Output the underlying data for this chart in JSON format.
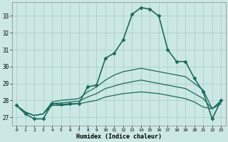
{
  "title": "",
  "xlabel": "Humidex (Indice chaleur)",
  "ylabel": "",
  "background_color": "#cce8e4",
  "grid_color": "#aacfca",
  "line_color": "#1a6b5a",
  "x_ticks": [
    0,
    1,
    2,
    3,
    4,
    5,
    6,
    7,
    8,
    9,
    10,
    11,
    12,
    13,
    14,
    15,
    16,
    17,
    18,
    19,
    20,
    21,
    22,
    23
  ],
  "y_ticks": [
    27,
    28,
    29,
    30,
    31,
    32,
    33
  ],
  "xlim": [
    -0.5,
    23.5
  ],
  "ylim": [
    26.5,
    33.8
  ],
  "series": [
    {
      "x": [
        0,
        1,
        2,
        3,
        4,
        5,
        6,
        7,
        8,
        9,
        10,
        11,
        12,
        13,
        14,
        15,
        16,
        17,
        18,
        19,
        20,
        21,
        22,
        23
      ],
      "y": [
        27.7,
        27.2,
        26.9,
        26.9,
        27.8,
        27.75,
        27.8,
        27.8,
        28.8,
        28.9,
        30.5,
        30.8,
        31.6,
        33.1,
        33.5,
        33.4,
        33.0,
        31.0,
        30.3,
        30.3,
        29.3,
        28.5,
        26.9,
        28.0
      ],
      "marker": "D",
      "markersize": 2.5,
      "linewidth": 1.2
    },
    {
      "x": [
        0,
        1,
        2,
        3,
        4,
        5,
        6,
        7,
        8,
        9,
        10,
        11,
        12,
        13,
        14,
        15,
        16,
        17,
        18,
        19,
        20,
        21,
        22,
        23
      ],
      "y": [
        27.7,
        27.3,
        27.1,
        27.2,
        27.9,
        28.0,
        28.05,
        28.1,
        28.5,
        28.8,
        29.2,
        29.5,
        29.7,
        29.8,
        29.9,
        29.8,
        29.7,
        29.6,
        29.5,
        29.4,
        29.0,
        28.6,
        27.5,
        28.0
      ],
      "marker": null,
      "markersize": 0,
      "linewidth": 0.9
    },
    {
      "x": [
        0,
        1,
        2,
        3,
        4,
        5,
        6,
        7,
        8,
        9,
        10,
        11,
        12,
        13,
        14,
        15,
        16,
        17,
        18,
        19,
        20,
        21,
        22,
        23
      ],
      "y": [
        27.7,
        27.3,
        27.1,
        27.2,
        27.8,
        27.85,
        27.9,
        27.95,
        28.2,
        28.4,
        28.7,
        28.85,
        29.0,
        29.1,
        29.2,
        29.1,
        29.0,
        28.9,
        28.8,
        28.7,
        28.4,
        28.1,
        27.5,
        27.9
      ],
      "marker": null,
      "markersize": 0,
      "linewidth": 0.9
    },
    {
      "x": [
        0,
        1,
        2,
        3,
        4,
        5,
        6,
        7,
        8,
        9,
        10,
        11,
        12,
        13,
        14,
        15,
        16,
        17,
        18,
        19,
        20,
        21,
        22,
        23
      ],
      "y": [
        27.7,
        27.3,
        27.1,
        27.2,
        27.7,
        27.7,
        27.75,
        27.8,
        27.9,
        28.0,
        28.2,
        28.3,
        28.4,
        28.45,
        28.5,
        28.45,
        28.4,
        28.3,
        28.2,
        28.1,
        27.9,
        27.6,
        27.5,
        27.8
      ],
      "marker": null,
      "markersize": 0,
      "linewidth": 0.9
    }
  ]
}
